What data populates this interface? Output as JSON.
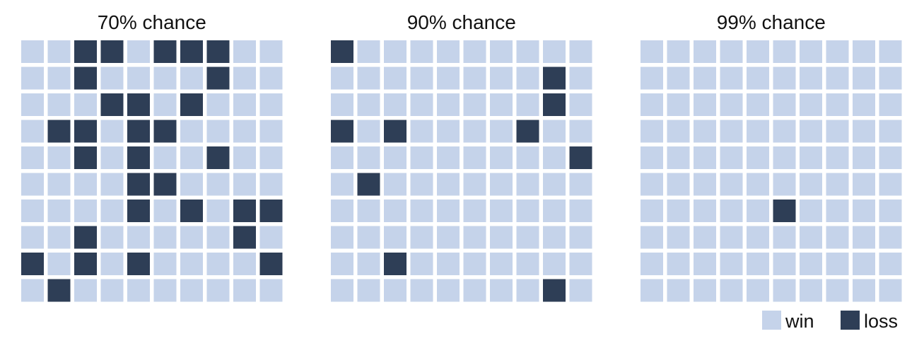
{
  "chart_data": {
    "type": "waffle",
    "colors": {
      "win": "#c5d3ea",
      "loss": "#2e3e56"
    },
    "legend": {
      "placement": "bottom-right",
      "entries": [
        "win",
        "loss"
      ]
    },
    "panels": [
      {
        "title": "70% chance",
        "grid": [
          "WWLLWLLLWW",
          "WWLWWWWLWW",
          "WWWLLWLWWW",
          "WLLWLLWWWW",
          "WWLWLWWLWW",
          "WWWWLLWWWW",
          "WWWWLWLWLL",
          "WWLWWWWWLW",
          "LWLWLWWWWL",
          "WLWWWWWWWW"
        ]
      },
      {
        "title": "90% chance",
        "grid": [
          "LWWWWWWWWW",
          "WWWWWWWWLW",
          "WWWWWWWWLW",
          "LWLWWWWLWW",
          "WWWWWWWWWL",
          "WLWWWWWWWW",
          "WWWWWWWWWW",
          "WWWWWWWWWW",
          "WWLWWWWWWW",
          "WWWWWWWWLW"
        ]
      },
      {
        "title": "99% chance",
        "grid": [
          "WWWWWWWWWW",
          "WWWWWWWWWW",
          "WWWWWWWWWW",
          "WWWWWWWWWW",
          "WWWWWWWWWW",
          "WWWWWWWWWW",
          "WWWWWLWWWW",
          "WWWWWWWWWW",
          "WWWWWWWWWW",
          "WWWWWWWWWW"
        ]
      }
    ]
  }
}
